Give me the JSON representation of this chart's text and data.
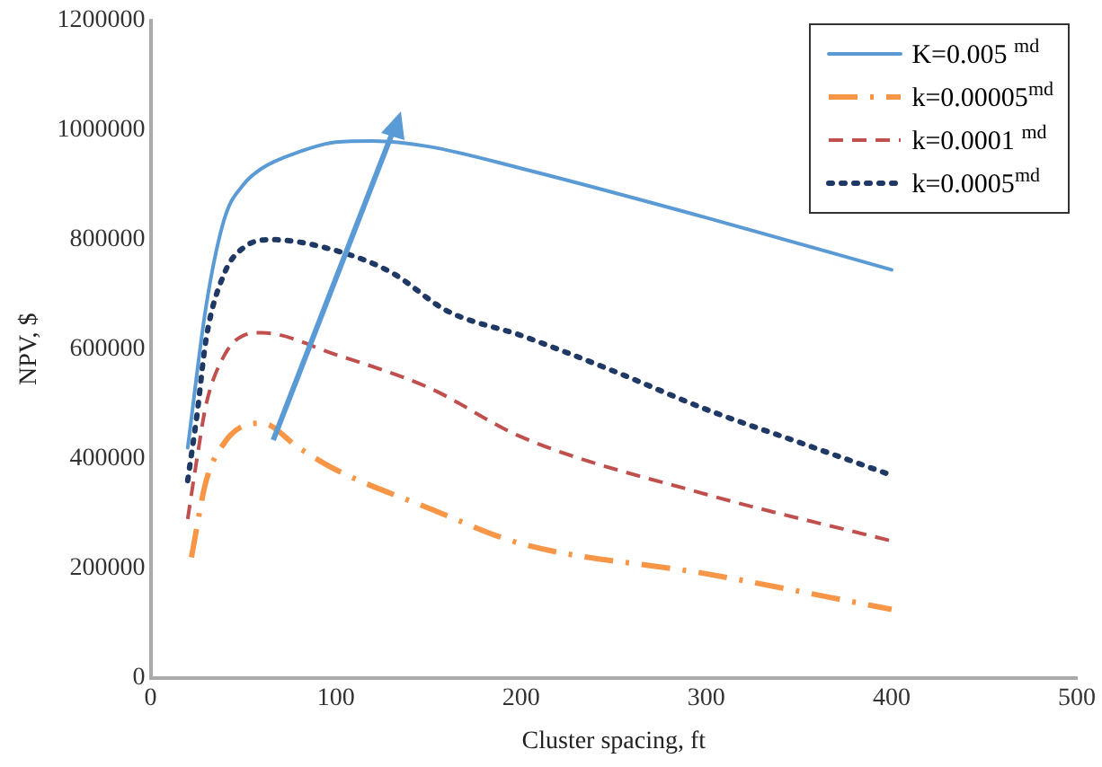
{
  "chart_data": {
    "type": "line",
    "xlabel": "Cluster spacing, ft",
    "ylabel": "NPV, $",
    "xlim": [
      0,
      500
    ],
    "xticks": [
      0,
      100,
      200,
      300,
      400,
      500
    ],
    "ylim": [
      0,
      1200000
    ],
    "yticks": [
      0,
      200000,
      400000,
      600000,
      800000,
      1000000,
      1200000
    ],
    "grid": false,
    "legend": "top right",
    "marker": "none",
    "series": [
      {
        "name": "K=0.005 $^{md}$",
        "color": "#5b9bd5",
        "line_style": "solid",
        "x": [
          20,
          30,
          40,
          50,
          60,
          80,
          100,
          120,
          150,
          200,
          300,
          400
        ],
        "values": [
          420000,
          680000,
          840000,
          900000,
          930000,
          960000,
          978000,
          980000,
          970000,
          930000,
          840000,
          745000
        ]
      },
      {
        "name": "k=0.00005$^{md}$",
        "color": "#f79646",
        "line_style": "dashdot",
        "x": [
          22,
          30,
          40,
          50,
          60,
          80,
          100,
          150,
          200,
          300,
          400
        ],
        "values": [
          220000,
          360000,
          430000,
          460000,
          465000,
          420000,
          380000,
          310000,
          245000,
          190000,
          125000
        ]
      },
      {
        "name": "k=0.0001 $^{md}$",
        "color": "#c0504d",
        "line_style": "dashed",
        "x": [
          20,
          25,
          30,
          40,
          50,
          60,
          100,
          150,
          200,
          300,
          400
        ],
        "values": [
          290000,
          400000,
          500000,
          590000,
          625000,
          630000,
          590000,
          530000,
          440000,
          335000,
          250000
        ]
      },
      {
        "name": "k=0.0005$^{md}$",
        "color": "#1f3864",
        "line_style": "dotted",
        "x": [
          20,
          25,
          30,
          40,
          50,
          65,
          100,
          130,
          160,
          200,
          250,
          300,
          350,
          400
        ],
        "values": [
          360000,
          480000,
          620000,
          740000,
          785000,
          800000,
          780000,
          740000,
          670000,
          625000,
          560000,
          490000,
          430000,
          370000
        ]
      }
    ]
  }
}
